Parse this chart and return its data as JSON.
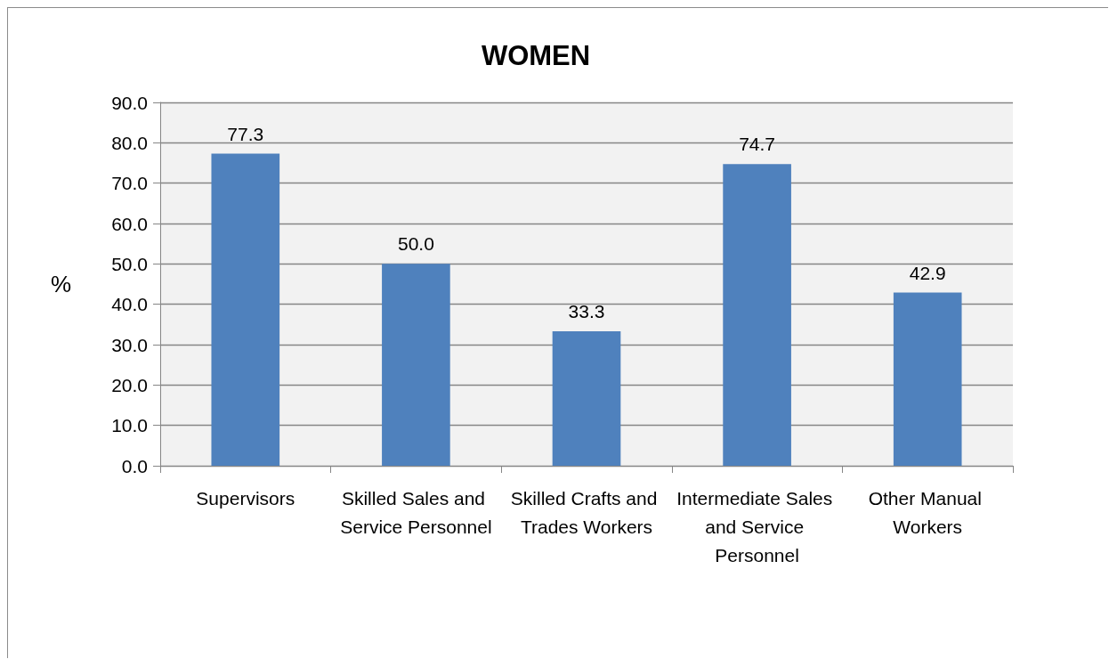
{
  "chart_data": {
    "type": "bar",
    "title": "WOMEN",
    "ylabel": "%",
    "categories": [
      "Supervisors",
      "Skilled Sales and Service Personnel",
      "Skilled Crafts and Trades Workers",
      "Intermediate Sales and Service Personnel",
      "Other Manual Workers"
    ],
    "values": [
      77.3,
      50.0,
      33.3,
      74.7,
      42.9
    ],
    "value_labels": [
      "77.3",
      "50.0",
      "33.3",
      "74.7",
      "42.9"
    ],
    "color": "#4f81bd",
    "ylim": [
      0,
      90
    ],
    "yticks": [
      {
        "value": 0,
        "label": "0.0"
      },
      {
        "value": 10,
        "label": "10.0"
      },
      {
        "value": 20,
        "label": "20.0"
      },
      {
        "value": 30,
        "label": "30.0"
      },
      {
        "value": 40,
        "label": "40.0"
      },
      {
        "value": 50,
        "label": "50.0"
      },
      {
        "value": 60,
        "label": "60.0"
      },
      {
        "value": 70,
        "label": "70.0"
      },
      {
        "value": 80,
        "label": "80.0"
      },
      {
        "value": 90,
        "label": "90.0"
      }
    ],
    "grid": "y"
  }
}
